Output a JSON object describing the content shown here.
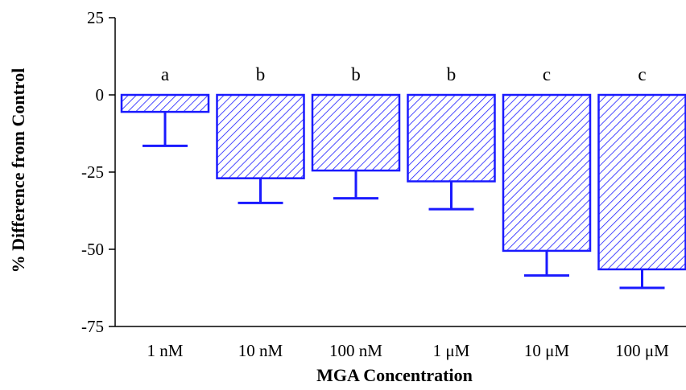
{
  "colors": {
    "bar_stroke": "#1a1aff",
    "hatch": "#1a1aff",
    "error_bar": "#1a1aff",
    "axis": "#000000",
    "background": "#ffffff"
  },
  "chart_data": {
    "type": "bar",
    "title": "",
    "xlabel": "MGA Concentration",
    "ylabel": "% Difference from Control",
    "categories": [
      "1 nM",
      "10 nM",
      "100 nM",
      "1 μM",
      "10 μM",
      "100 μM"
    ],
    "values": [
      -5.5,
      -27,
      -24.5,
      -28,
      -50.5,
      -56.5
    ],
    "error_lower": [
      -16.5,
      -35,
      -33.5,
      -37,
      -58.5,
      -62.5
    ],
    "significance_letters": [
      "a",
      "b",
      "b",
      "b",
      "c",
      "c"
    ],
    "ylim": [
      -75,
      25
    ],
    "yticks": [
      25,
      0,
      -25,
      -50,
      -75
    ],
    "ytick_labels": [
      "25",
      "0",
      "-25",
      "-50",
      "-75"
    ],
    "grid": false,
    "legend": false,
    "bar_fill": "diagonal-hatch"
  }
}
